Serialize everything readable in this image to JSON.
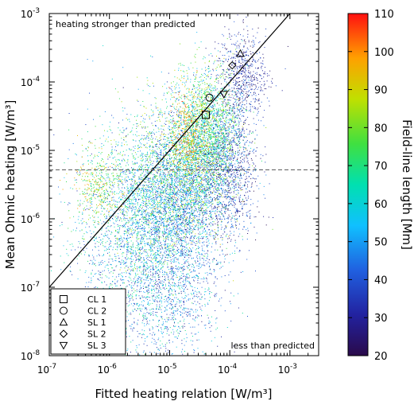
{
  "chart_data": {
    "type": "scatter",
    "xlabel": "Fitted heating relation [W/m³]",
    "ylabel": "Mean Ohmic heating [W/m³]",
    "x_scale": "log",
    "y_scale": "log",
    "xlim": [
      1e-07,
      0.003
    ],
    "ylim": [
      1e-08,
      0.001
    ],
    "x_ticks": [
      {
        "value": 1e-07,
        "base": "10",
        "exp": "-7"
      },
      {
        "value": 1e-06,
        "base": "10",
        "exp": "-6"
      },
      {
        "value": 1e-05,
        "base": "10",
        "exp": "-5"
      },
      {
        "value": 0.0001,
        "base": "10",
        "exp": "-4"
      },
      {
        "value": 0.001,
        "base": "10",
        "exp": "-3"
      }
    ],
    "y_ticks": [
      {
        "value": 1e-08,
        "base": "10",
        "exp": "-8"
      },
      {
        "value": 1e-07,
        "base": "10",
        "exp": "-7"
      },
      {
        "value": 1e-06,
        "base": "10",
        "exp": "-6"
      },
      {
        "value": 1e-05,
        "base": "10",
        "exp": "-5"
      },
      {
        "value": 0.0001,
        "base": "10",
        "exp": "-4"
      },
      {
        "value": 0.001,
        "base": "10",
        "exp": "-3"
      }
    ],
    "annotations": {
      "top_left": "heating stronger than predicted",
      "bottom_right": "less than predicted"
    },
    "reference_lines": {
      "identity_line": {
        "x": [
          1e-07,
          0.001
        ],
        "y": [
          1e-07,
          0.001
        ]
      },
      "dashed_horizontal_y": 5.2e-06
    },
    "colorbar": {
      "label": "Field-line length [Mm]",
      "min": 20,
      "max": 110,
      "ticks": [
        20,
        30,
        40,
        50,
        60,
        70,
        80,
        90,
        100,
        110
      ]
    },
    "legend": [
      {
        "label": "CL 1",
        "marker": "square"
      },
      {
        "label": "CL 2",
        "marker": "circle"
      },
      {
        "label": "SL 1",
        "marker": "triangle-up"
      },
      {
        "label": "SL 2",
        "marker": "diamond"
      },
      {
        "label": "SL 3",
        "marker": "triangle-down"
      }
    ],
    "highlighted_points": [
      {
        "label": "CL 1",
        "marker": "square",
        "x": 4e-05,
        "y": 3.3e-05
      },
      {
        "label": "CL 2",
        "marker": "circle",
        "x": 4.6e-05,
        "y": 5.9e-05
      },
      {
        "label": "SL 1",
        "marker": "triangle-up",
        "x": 0.00015,
        "y": 0.00026
      },
      {
        "label": "SL 2",
        "marker": "diamond",
        "x": 0.00011,
        "y": 0.000175
      },
      {
        "label": "SL 3",
        "marker": "triangle-down",
        "x": 8e-05,
        "y": 6.6e-05
      }
    ],
    "point_clusters": [
      {
        "x": 3e-06,
        "y": 5e-07,
        "sx": 0.55,
        "sy": 0.75,
        "n": 2200,
        "length": [
          30,
          75
        ]
      },
      {
        "x": 6e-06,
        "y": 2.5e-06,
        "sx": 0.45,
        "sy": 0.6,
        "n": 1800,
        "length": [
          40,
          90
        ]
      },
      {
        "x": 1.5e-05,
        "y": 1.5e-06,
        "sx": 0.35,
        "sy": 0.7,
        "n": 1800,
        "length": [
          25,
          60
        ]
      },
      {
        "x": 2.5e-05,
        "y": 8e-06,
        "sx": 0.3,
        "sy": 0.55,
        "n": 1600,
        "length": [
          45,
          95
        ]
      },
      {
        "x": 5e-05,
        "y": 2e-05,
        "sx": 0.25,
        "sy": 0.45,
        "n": 1400,
        "length": [
          50,
          90
        ]
      },
      {
        "x": 9e-05,
        "y": 5e-06,
        "sx": 0.25,
        "sy": 0.5,
        "n": 1200,
        "length": [
          20,
          50
        ]
      },
      {
        "x": 0.00016,
        "y": 0.00012,
        "sx": 0.2,
        "sy": 0.35,
        "n": 700,
        "length": [
          20,
          45
        ]
      },
      {
        "x": 6e-07,
        "y": 3e-06,
        "sx": 0.2,
        "sy": 0.25,
        "n": 350,
        "length": [
          65,
          100
        ]
      },
      {
        "x": 8e-06,
        "y": 5e-08,
        "sx": 0.5,
        "sy": 0.35,
        "n": 600,
        "length": [
          25,
          70
        ]
      },
      {
        "x": 2e-05,
        "y": 1.5e-05,
        "sx": 0.15,
        "sy": 0.35,
        "n": 400,
        "length": [
          85,
          108
        ]
      }
    ]
  }
}
